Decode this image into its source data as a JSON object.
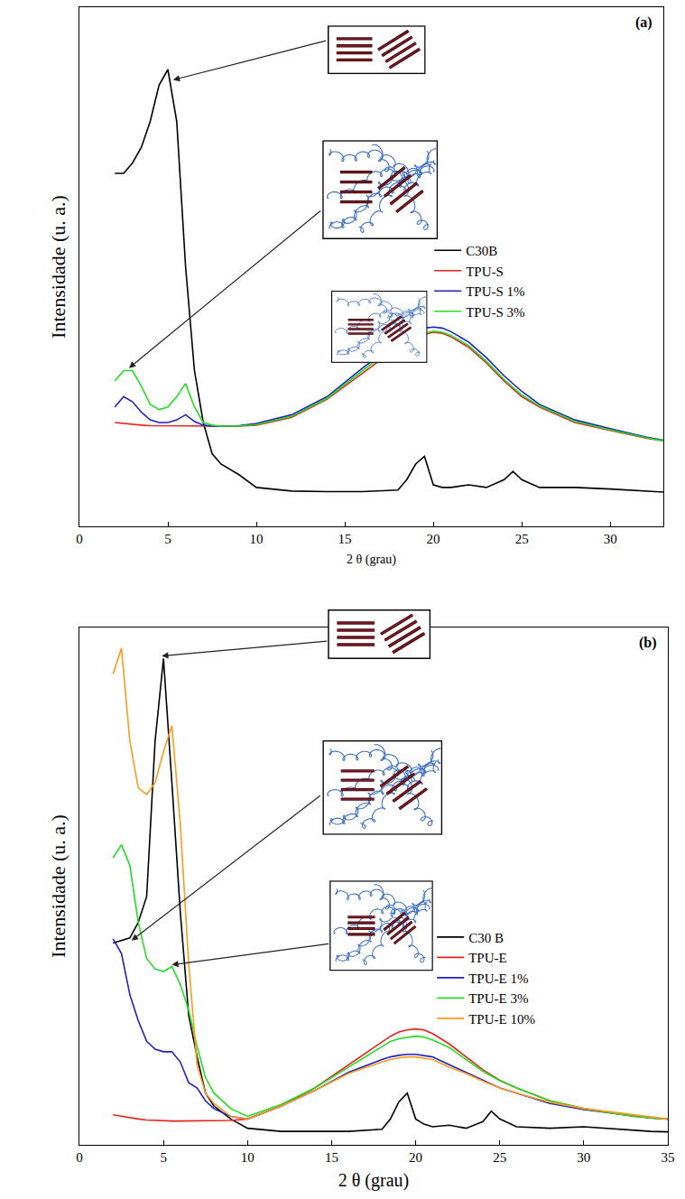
{
  "chart_data": [
    {
      "type": "line",
      "label": "(a)",
      "x_label": "2 θ (grau)",
      "y_label": "Intensidade (u. a.)",
      "xlim": [
        0,
        33
      ],
      "xticks": [
        0,
        5,
        10,
        15,
        20,
        25,
        30
      ],
      "ylim": [
        0,
        100
      ],
      "tick_labels": "x",
      "grid": false,
      "legend": "right",
      "x": [
        2,
        2.5,
        3,
        3.5,
        4,
        4.5,
        5,
        5.5,
        6,
        6.5,
        7,
        7.5,
        8,
        9,
        10,
        12,
        14,
        16,
        18,
        18.5,
        19,
        19.5,
        20,
        20.5,
        21,
        22,
        23,
        24,
        24.5,
        25,
        26,
        28,
        30,
        32,
        33
      ],
      "series": [
        {
          "name": "C30B",
          "color": "#000000",
          "values": [
            68,
            68,
            70,
            73,
            78,
            85,
            88,
            78,
            50,
            30,
            20,
            14,
            12,
            10,
            7.5,
            6.8,
            6.7,
            6.7,
            7,
            9,
            12,
            13.5,
            8,
            7.5,
            7.5,
            8,
            7.5,
            9,
            10.6,
            9,
            7.5,
            7.5,
            7.2,
            6.8,
            6.6
          ]
        },
        {
          "name": "TPU-S",
          "color": "#e8221c",
          "values": [
            20,
            19.8,
            19.6,
            19.5,
            19.4,
            19.4,
            19.3,
            19.3,
            19.3,
            19.3,
            19.3,
            19.3,
            19.3,
            19.3,
            19.5,
            21,
            24.5,
            29.5,
            34.5,
            35.5,
            36.5,
            37,
            37.4,
            37.2,
            36.5,
            34.5,
            31.5,
            28,
            26.5,
            25,
            23,
            20,
            18.5,
            17,
            16.5
          ]
        },
        {
          "name": "TPU-S 1%",
          "color": "#1f1fc8",
          "values": [
            23,
            25,
            24,
            22,
            20.5,
            20,
            20,
            20.5,
            21.5,
            20.2,
            19.5,
            19.3,
            19.3,
            19.4,
            19.8,
            21.5,
            25,
            30.5,
            35.5,
            36.5,
            37.5,
            38.2,
            38.4,
            38.2,
            37.5,
            35.5,
            32.5,
            29,
            27.5,
            26,
            23.5,
            20.5,
            18.8,
            17.2,
            16.6
          ]
        },
        {
          "name": "TPU-S 3%",
          "color": "#22dd22",
          "values": [
            28,
            30,
            30,
            27,
            23.5,
            22.5,
            23,
            25,
            27.5,
            23,
            20,
            19.5,
            19.3,
            19.3,
            19.6,
            21.2,
            24.7,
            30,
            35,
            36,
            36.8,
            37.2,
            37.6,
            37.4,
            36.8,
            34.8,
            31.8,
            28.3,
            26.8,
            25.3,
            23.2,
            20.2,
            18.6,
            17.1,
            16.5
          ]
        }
      ]
    },
    {
      "type": "line",
      "label": "(b)",
      "x_label": "2 θ (grau)",
      "y_label": "Intensidade (u. a.)",
      "xlim": [
        0,
        35
      ],
      "xticks": [
        0,
        5,
        10,
        15,
        20,
        25,
        30,
        35
      ],
      "ylim": [
        0,
        100
      ],
      "tick_labels": "x",
      "grid": false,
      "legend": "right",
      "x": [
        2,
        2.5,
        3,
        3.5,
        4,
        4.5,
        5,
        5.5,
        6,
        6.5,
        7,
        7.5,
        8,
        9,
        10,
        12,
        14,
        16,
        18,
        18.5,
        19,
        19.5,
        20,
        20.5,
        21,
        22,
        23,
        24,
        24.5,
        25,
        26,
        28,
        30,
        32,
        33,
        34,
        35
      ],
      "series": [
        {
          "name": "C30 B",
          "color": "#000000",
          "values": [
            39,
            39.5,
            40,
            43,
            48,
            78,
            94,
            70,
            45,
            25,
            17,
            10,
            7.5,
            5,
            3.2,
            2.6,
            2.6,
            2.6,
            3,
            5,
            8.3,
            10,
            5,
            4,
            3.5,
            3.8,
            3.2,
            4.5,
            6.5,
            5,
            3.5,
            3.2,
            3.5,
            3,
            2.8,
            2.6,
            2.5
          ]
        },
        {
          "name": "TPU-E",
          "color": "#e8221c",
          "values": [
            5.8,
            5.5,
            5.2,
            5,
            4.8,
            4.7,
            4.6,
            4.6,
            4.6,
            4.6,
            4.6,
            4.6,
            4.6,
            4.7,
            5,
            7.5,
            11,
            15.5,
            20,
            21,
            21.8,
            22.2,
            22.4,
            22.2,
            21.5,
            19.5,
            17,
            14.5,
            13.5,
            12.5,
            11,
            8.5,
            7,
            6,
            5.5,
            5.2,
            5
          ]
        },
        {
          "name": "TPU-E 1%",
          "color": "#1f1fc8",
          "values": [
            39.8,
            37,
            29,
            24,
            20,
            18.5,
            18,
            18,
            16,
            12,
            11,
            8.5,
            7,
            5.5,
            5,
            7.5,
            10.5,
            14,
            16.5,
            17,
            17.3,
            17.5,
            17.5,
            17.3,
            17,
            15.5,
            14,
            12.5,
            11.8,
            11,
            10,
            8,
            6.8,
            6,
            5.5,
            5.2,
            5
          ]
        },
        {
          "name": "TPU-E 3%",
          "color": "#22dd22",
          "values": [
            55.5,
            58,
            54,
            43,
            36,
            34,
            33.5,
            34.5,
            31,
            26,
            19,
            13,
            10,
            7,
            5.5,
            7.8,
            11,
            15,
            19,
            20,
            20.5,
            20.8,
            21,
            20.8,
            20.3,
            18.8,
            16.5,
            14.2,
            13.3,
            12.4,
            11,
            8.5,
            7,
            6,
            5.5,
            5.2,
            5
          ]
        },
        {
          "name": "TPU-E 10%",
          "color": "#ff9a1a",
          "values": [
            91,
            96,
            78,
            69,
            67.7,
            70,
            76,
            81,
            62,
            35,
            15.4,
            10,
            8,
            5.5,
            5,
            7.5,
            10.5,
            13.8,
            16,
            16.5,
            16.8,
            17,
            17,
            16.8,
            16.5,
            15,
            13.8,
            12.3,
            11.6,
            11,
            10,
            8.2,
            7,
            6.2,
            5.7,
            5.3,
            5
          ]
        }
      ]
    }
  ]
}
